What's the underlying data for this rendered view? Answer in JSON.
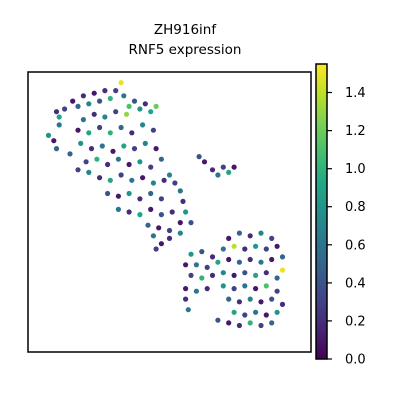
{
  "chart_data": {
    "type": "scatter",
    "title_line1": "ZH916inf",
    "title_line2": "RNF5 expression",
    "xlabel": "",
    "ylabel": "",
    "grid": false,
    "colorbar": {
      "colormap": "viridis",
      "range": [
        0.0,
        1.55
      ],
      "ticks": [
        {
          "value": 0.0,
          "label": "0.0"
        },
        {
          "value": 0.2,
          "label": "0.2"
        },
        {
          "value": 0.4,
          "label": "0.4"
        },
        {
          "value": 0.6,
          "label": "0.6"
        },
        {
          "value": 0.8,
          "label": "0.8"
        },
        {
          "value": 1.0,
          "label": "1.0"
        },
        {
          "value": 1.2,
          "label": "1.2"
        },
        {
          "value": 1.4,
          "label": "1.4"
        }
      ]
    },
    "points_note": "approximate spatial spots; x,y in arbitrary embedding units (0-100), value = expression",
    "points": [
      {
        "x": 8,
        "y": 88,
        "v": 0.2
      },
      {
        "x": 9,
        "y": 86,
        "v": 0.9
      },
      {
        "x": 11,
        "y": 89,
        "v": 0.3
      },
      {
        "x": 9,
        "y": 83,
        "v": 0.6
      },
      {
        "x": 14,
        "y": 92,
        "v": 0.1
      },
      {
        "x": 16,
        "y": 90,
        "v": 0.5
      },
      {
        "x": 18,
        "y": 94,
        "v": 0.2
      },
      {
        "x": 20,
        "y": 91,
        "v": 0.7
      },
      {
        "x": 22,
        "y": 95,
        "v": 0.1
      },
      {
        "x": 24,
        "y": 92,
        "v": 0.4
      },
      {
        "x": 26,
        "y": 96,
        "v": 0.2
      },
      {
        "x": 28,
        "y": 93,
        "v": 1.0
      },
      {
        "x": 30,
        "y": 96,
        "v": 0.3
      },
      {
        "x": 32,
        "y": 99,
        "v": 1.5
      },
      {
        "x": 33,
        "y": 94,
        "v": 0.6
      },
      {
        "x": 35,
        "y": 90,
        "v": 1.1
      },
      {
        "x": 37,
        "y": 92,
        "v": 0.4
      },
      {
        "x": 39,
        "y": 89,
        "v": 0.8
      },
      {
        "x": 41,
        "y": 91,
        "v": 0.2
      },
      {
        "x": 43,
        "y": 88,
        "v": 0.9
      },
      {
        "x": 45,
        "y": 90,
        "v": 1.2
      },
      {
        "x": 34,
        "y": 87,
        "v": 1.3
      },
      {
        "x": 30,
        "y": 88,
        "v": 0.3
      },
      {
        "x": 26,
        "y": 86,
        "v": 0.7
      },
      {
        "x": 22,
        "y": 87,
        "v": 0.2
      },
      {
        "x": 18,
        "y": 85,
        "v": 0.6
      },
      {
        "x": 16,
        "y": 81,
        "v": 0.1
      },
      {
        "x": 20,
        "y": 80,
        "v": 0.9
      },
      {
        "x": 24,
        "y": 82,
        "v": 0.3
      },
      {
        "x": 28,
        "y": 80,
        "v": 1.0
      },
      {
        "x": 32,
        "y": 82,
        "v": 0.5
      },
      {
        "x": 36,
        "y": 80,
        "v": 0.2
      },
      {
        "x": 40,
        "y": 83,
        "v": 0.7
      },
      {
        "x": 44,
        "y": 81,
        "v": 0.3
      },
      {
        "x": 17,
        "y": 76,
        "v": 0.8
      },
      {
        "x": 21,
        "y": 74,
        "v": 0.2
      },
      {
        "x": 25,
        "y": 75,
        "v": 0.6
      },
      {
        "x": 29,
        "y": 73,
        "v": 0.1
      },
      {
        "x": 33,
        "y": 75,
        "v": 0.9
      },
      {
        "x": 37,
        "y": 74,
        "v": 0.3
      },
      {
        "x": 41,
        "y": 76,
        "v": 0.7
      },
      {
        "x": 45,
        "y": 74,
        "v": 0.1
      },
      {
        "x": 13,
        "y": 72,
        "v": 0.5
      },
      {
        "x": 19,
        "y": 69,
        "v": 0.3
      },
      {
        "x": 23,
        "y": 70,
        "v": 1.0
      },
      {
        "x": 27,
        "y": 68,
        "v": 0.2
      },
      {
        "x": 31,
        "y": 70,
        "v": 0.6
      },
      {
        "x": 35,
        "y": 68,
        "v": 0.1
      },
      {
        "x": 39,
        "y": 69,
        "v": 0.8
      },
      {
        "x": 43,
        "y": 67,
        "v": 0.3
      },
      {
        "x": 47,
        "y": 70,
        "v": 0.5
      },
      {
        "x": 24,
        "y": 63,
        "v": 0.2
      },
      {
        "x": 28,
        "y": 62,
        "v": 0.9
      },
      {
        "x": 32,
        "y": 64,
        "v": 0.3
      },
      {
        "x": 36,
        "y": 62,
        "v": 0.6
      },
      {
        "x": 40,
        "y": 63,
        "v": 0.1
      },
      {
        "x": 44,
        "y": 61,
        "v": 0.7
      },
      {
        "x": 48,
        "y": 62,
        "v": 0.2
      },
      {
        "x": 27,
        "y": 57,
        "v": 0.4
      },
      {
        "x": 31,
        "y": 56,
        "v": 0.1
      },
      {
        "x": 35,
        "y": 57,
        "v": 0.8
      },
      {
        "x": 39,
        "y": 55,
        "v": 0.2
      },
      {
        "x": 43,
        "y": 57,
        "v": 0.5
      },
      {
        "x": 47,
        "y": 55,
        "v": 0.3
      },
      {
        "x": 31,
        "y": 51,
        "v": 0.6
      },
      {
        "x": 35,
        "y": 50,
        "v": 0.2
      },
      {
        "x": 39,
        "y": 49,
        "v": 0.9
      },
      {
        "x": 43,
        "y": 51,
        "v": 0.1
      },
      {
        "x": 47,
        "y": 49,
        "v": 0.4
      },
      {
        "x": 51,
        "y": 50,
        "v": 0.2
      },
      {
        "x": 42,
        "y": 45,
        "v": 0.5
      },
      {
        "x": 46,
        "y": 44,
        "v": 0.1
      },
      {
        "x": 50,
        "y": 43,
        "v": 0.3
      },
      {
        "x": 44,
        "y": 41,
        "v": 0.6
      },
      {
        "x": 50,
        "y": 40,
        "v": 0.2
      },
      {
        "x": 54,
        "y": 42,
        "v": 0.7
      },
      {
        "x": 47,
        "y": 38,
        "v": 0.1
      },
      {
        "x": 45,
        "y": 36,
        "v": 0.3
      },
      {
        "x": 66,
        "y": 66,
        "v": 0.2
      },
      {
        "x": 68,
        "y": 64,
        "v": 0.6
      },
      {
        "x": 70,
        "y": 67,
        "v": 0.3
      },
      {
        "x": 72,
        "y": 65,
        "v": 0.9
      },
      {
        "x": 74,
        "y": 67,
        "v": 0.1
      },
      {
        "x": 61,
        "y": 71,
        "v": 0.4
      },
      {
        "x": 63,
        "y": 69,
        "v": 0.1
      },
      {
        "x": 16,
        "y": 66,
        "v": 0.3
      },
      {
        "x": 20,
        "y": 65,
        "v": 0.7
      },
      {
        "x": 5,
        "y": 79,
        "v": 0.8
      },
      {
        "x": 7,
        "y": 77,
        "v": 0.1
      },
      {
        "x": 8,
        "y": 74,
        "v": 0.5
      },
      {
        "x": 50,
        "y": 64,
        "v": 0.7
      },
      {
        "x": 52,
        "y": 61,
        "v": 0.3
      },
      {
        "x": 54,
        "y": 58,
        "v": 0.6
      },
      {
        "x": 55,
        "y": 54,
        "v": 0.2
      },
      {
        "x": 56,
        "y": 50,
        "v": 0.8
      },
      {
        "x": 54,
        "y": 46,
        "v": 0.1
      },
      {
        "x": 58,
        "y": 46,
        "v": 0.4
      },
      {
        "x": 72,
        "y": 40,
        "v": 0.1
      },
      {
        "x": 76,
        "y": 42,
        "v": 0.5
      },
      {
        "x": 80,
        "y": 41,
        "v": 0.2
      },
      {
        "x": 84,
        "y": 42,
        "v": 0.7
      },
      {
        "x": 88,
        "y": 40,
        "v": 0.3
      },
      {
        "x": 90,
        "y": 37,
        "v": 0.1
      },
      {
        "x": 70,
        "y": 36,
        "v": 0.6
      },
      {
        "x": 74,
        "y": 37,
        "v": 1.4
      },
      {
        "x": 78,
        "y": 36,
        "v": 0.2
      },
      {
        "x": 82,
        "y": 37,
        "v": 0.8
      },
      {
        "x": 86,
        "y": 36,
        "v": 0.3
      },
      {
        "x": 92,
        "y": 33,
        "v": 0.5
      },
      {
        "x": 66,
        "y": 33,
        "v": 0.2
      },
      {
        "x": 62,
        "y": 35,
        "v": 0.4
      },
      {
        "x": 58,
        "y": 34,
        "v": 0.8
      },
      {
        "x": 56,
        "y": 30,
        "v": 0.1
      },
      {
        "x": 60,
        "y": 30,
        "v": 0.6
      },
      {
        "x": 64,
        "y": 29,
        "v": 0.3
      },
      {
        "x": 68,
        "y": 31,
        "v": 0.9
      },
      {
        "x": 72,
        "y": 32,
        "v": 0.1
      },
      {
        "x": 76,
        "y": 31,
        "v": 0.5
      },
      {
        "x": 80,
        "y": 32,
        "v": 0.2
      },
      {
        "x": 84,
        "y": 31,
        "v": 0.6
      },
      {
        "x": 88,
        "y": 32,
        "v": 0.1
      },
      {
        "x": 92,
        "y": 28,
        "v": 1.5
      },
      {
        "x": 58,
        "y": 26,
        "v": 0.3
      },
      {
        "x": 62,
        "y": 25,
        "v": 1.0
      },
      {
        "x": 66,
        "y": 26,
        "v": 0.2
      },
      {
        "x": 70,
        "y": 27,
        "v": 0.7
      },
      {
        "x": 74,
        "y": 26,
        "v": 0.1
      },
      {
        "x": 78,
        "y": 27,
        "v": 0.4
      },
      {
        "x": 82,
        "y": 26,
        "v": 0.9
      },
      {
        "x": 86,
        "y": 27,
        "v": 0.2
      },
      {
        "x": 90,
        "y": 25,
        "v": 0.5
      },
      {
        "x": 56,
        "y": 21,
        "v": 0.1
      },
      {
        "x": 60,
        "y": 20,
        "v": 0.6
      },
      {
        "x": 64,
        "y": 21,
        "v": 0.2
      },
      {
        "x": 70,
        "y": 22,
        "v": 0.8
      },
      {
        "x": 74,
        "y": 21,
        "v": 0.3
      },
      {
        "x": 78,
        "y": 22,
        "v": 0.6
      },
      {
        "x": 82,
        "y": 21,
        "v": 0.1
      },
      {
        "x": 86,
        "y": 22,
        "v": 1.1
      },
      {
        "x": 90,
        "y": 20,
        "v": 0.3
      },
      {
        "x": 72,
        "y": 17,
        "v": 0.5
      },
      {
        "x": 76,
        "y": 16,
        "v": 0.2
      },
      {
        "x": 80,
        "y": 17,
        "v": 0.7
      },
      {
        "x": 84,
        "y": 16,
        "v": 0.1
      },
      {
        "x": 88,
        "y": 17,
        "v": 0.4
      },
      {
        "x": 92,
        "y": 15,
        "v": 0.2
      },
      {
        "x": 74,
        "y": 12,
        "v": 0.9
      },
      {
        "x": 78,
        "y": 11,
        "v": 0.3
      },
      {
        "x": 82,
        "y": 12,
        "v": 0.6
      },
      {
        "x": 86,
        "y": 11,
        "v": 0.1
      },
      {
        "x": 90,
        "y": 12,
        "v": 0.8
      },
      {
        "x": 76,
        "y": 7,
        "v": 0.2
      },
      {
        "x": 80,
        "y": 8,
        "v": 1.0
      },
      {
        "x": 84,
        "y": 7,
        "v": 0.3
      },
      {
        "x": 88,
        "y": 8,
        "v": 0.5
      },
      {
        "x": 68,
        "y": 9,
        "v": 0.4
      },
      {
        "x": 72,
        "y": 8,
        "v": 0.1
      },
      {
        "x": 56,
        "y": 17,
        "v": 0.2
      },
      {
        "x": 57,
        "y": 13,
        "v": 0.6
      }
    ]
  },
  "colors": {
    "axes_frame": "#000000",
    "background": "#ffffff"
  }
}
